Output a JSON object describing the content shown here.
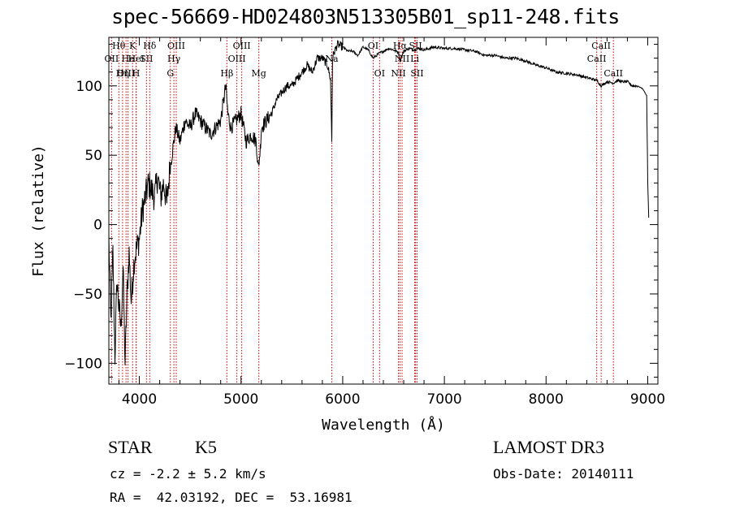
{
  "chart_data": {
    "type": "line",
    "title": "spec-56669-HD024803N513305B01_sp11-248.fits",
    "xlabel": "Wavelength (Å)",
    "ylabel": "Flux (relative)",
    "xlim": [
      3700,
      9100
    ],
    "ylim": [
      -115,
      135
    ],
    "xticks": [
      4000,
      5000,
      6000,
      7000,
      8000,
      9000
    ],
    "yticks": [
      -100,
      -50,
      0,
      50,
      100
    ],
    "series": [
      {
        "name": "flux",
        "x": [
          3700,
          3720,
          3740,
          3760,
          3780,
          3800,
          3820,
          3840,
          3860,
          3880,
          3900,
          3920,
          3950,
          3980,
          4000,
          4030,
          4060,
          4090,
          4120,
          4150,
          4180,
          4210,
          4240,
          4270,
          4300,
          4330,
          4360,
          4400,
          4450,
          4500,
          4550,
          4600,
          4650,
          4700,
          4750,
          4800,
          4850,
          4870,
          4900,
          4950,
          5000,
          5050,
          5100,
          5150,
          5170,
          5190,
          5200,
          5250,
          5300,
          5350,
          5400,
          5450,
          5500,
          5550,
          5600,
          5650,
          5700,
          5750,
          5800,
          5850,
          5880,
          5893,
          5900,
          5920,
          5950,
          6000,
          6050,
          6100,
          6150,
          6200,
          6250,
          6300,
          6350,
          6400,
          6450,
          6500,
          6550,
          6563,
          6600,
          6650,
          6700,
          6750,
          6800,
          6900,
          7000,
          7100,
          7200,
          7300,
          7400,
          7500,
          7600,
          7700,
          7800,
          7900,
          8000,
          8100,
          8200,
          8300,
          8400,
          8500,
          8542,
          8600,
          8662,
          8700,
          8750,
          8800,
          8850,
          8900,
          8950,
          8990,
          9000,
          9010
        ],
        "y": [
          -10,
          -70,
          -20,
          -95,
          -40,
          -60,
          -75,
          -30,
          -100,
          -50,
          -20,
          -55,
          -25,
          -15,
          -10,
          10,
          20,
          30,
          25,
          20,
          35,
          20,
          30,
          15,
          40,
          55,
          70,
          60,
          75,
          70,
          80,
          75,
          70,
          65,
          70,
          75,
          100,
          80,
          70,
          75,
          80,
          60,
          65,
          60,
          40,
          55,
          70,
          75,
          80,
          90,
          95,
          100,
          100,
          105,
          110,
          115,
          110,
          120,
          120,
          115,
          105,
          60,
          120,
          125,
          130,
          128,
          125,
          125,
          122,
          128,
          126,
          120,
          123,
          125,
          127,
          126,
          124,
          118,
          125,
          127,
          126,
          127,
          126,
          128,
          127,
          127,
          126,
          125,
          122,
          122,
          120,
          120,
          118,
          115,
          113,
          110,
          109,
          108,
          106,
          104,
          100,
          103,
          102,
          104,
          103,
          103,
          100,
          100,
          98,
          93,
          30,
          5
        ]
      }
    ],
    "line_markers": [
      {
        "label": "Hθ",
        "x": 3798,
        "row": 0
      },
      {
        "label": "OII",
        "x": 3727,
        "row": 1
      },
      {
        "label": "OIII",
        "x": 3869,
        "row": 2
      },
      {
        "label": "He",
        "x": 3889,
        "row": 1
      },
      {
        "label": "Hη",
        "x": 3835,
        "row": 2
      },
      {
        "label": "K",
        "x": 3934,
        "row": 0
      },
      {
        "label": "HeI",
        "x": 3970,
        "row": 1
      },
      {
        "label": "H",
        "x": 3968,
        "row": 2
      },
      {
        "label": "Hδ",
        "x": 4102,
        "row": 0
      },
      {
        "label": "SII",
        "x": 4070,
        "row": 1
      },
      {
        "label": "OIII",
        "x": 4363,
        "row": 0
      },
      {
        "label": "Hγ",
        "x": 4340,
        "row": 1
      },
      {
        "label": "G",
        "x": 4305,
        "row": 2
      },
      {
        "label": "OIII",
        "x": 5007,
        "row": 0
      },
      {
        "label": "OIII",
        "x": 4959,
        "row": 1
      },
      {
        "label": "Hβ",
        "x": 4861,
        "row": 2
      },
      {
        "label": "Mg",
        "x": 5175,
        "row": 2
      },
      {
        "label": "Na",
        "x": 5893,
        "row": 1
      },
      {
        "label": "OI",
        "x": 6300,
        "row": 0
      },
      {
        "label": "OI",
        "x": 6363,
        "row": 2
      },
      {
        "label": "Hα",
        "x": 6563,
        "row": 0
      },
      {
        "label": "NII",
        "x": 6584,
        "row": 1
      },
      {
        "label": "NII",
        "x": 6548,
        "row": 2
      },
      {
        "label": "SII",
        "x": 6716,
        "row": 0
      },
      {
        "label": "Li",
        "x": 6708,
        "row": 1
      },
      {
        "label": "SII",
        "x": 6731,
        "row": 2
      },
      {
        "label": "CaII",
        "x": 8542,
        "row": 0
      },
      {
        "label": "CaII",
        "x": 8498,
        "row": 1
      },
      {
        "label": "CaII",
        "x": 8662,
        "row": 2
      }
    ],
    "grid": false
  },
  "info": {
    "class": "STAR",
    "subclass": "K5",
    "survey": "LAMOST DR3",
    "cz": "cz = -2.2 ± 5.2 km/s",
    "obs_date": "Obs-Date: 20140111",
    "radec": "RA =  42.03192, DEC =  53.16981"
  },
  "colors": {
    "spectrum": "#000000",
    "marker": "#cc0000",
    "axis": "#000000"
  }
}
